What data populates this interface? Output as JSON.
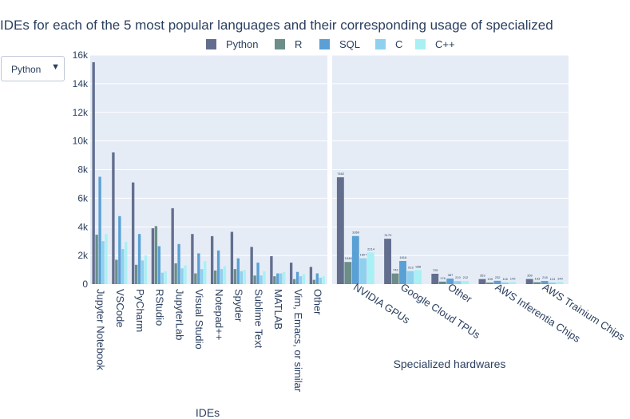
{
  "title": "IDEs for each of the 5 most popular languages and their corresponding usage of specialized",
  "dropdown": {
    "selected": "Python"
  },
  "icons": {
    "dropdown_arrow": "▼"
  },
  "colors": {
    "plot_bg": "#e5ecf6",
    "grid": "#ffffff",
    "text": "#2a3f5f",
    "series": [
      "#636e8f",
      "#6b8e88",
      "#5aa0d4",
      "#8fd0ee",
      "#a9f0f4"
    ]
  },
  "chart_data": [
    {
      "type": "bar",
      "xlabel": "IDEs",
      "ylim": [
        0,
        16000
      ],
      "yticks": [
        0,
        2000,
        4000,
        6000,
        8000,
        10000,
        12000,
        14000,
        16000
      ],
      "ytick_labels": [
        "0",
        "2k",
        "4k",
        "6k",
        "8k",
        "10k",
        "12k",
        "14k",
        "16k"
      ],
      "legend": {
        "placement": "top",
        "entries": [
          "Python",
          "R",
          "SQL",
          "C",
          "C++"
        ]
      },
      "categories": [
        "Jupyter Notebook",
        "VSCode",
        "PyCharm",
        "RStudio",
        "JupyterLab",
        "Visual Studio",
        "Notepad++",
        "Spyder",
        "Sublime Text",
        "MATLAB",
        "Vim, Emacs, or similar",
        "Other"
      ],
      "series": [
        {
          "name": "Python",
          "values": [
            15500,
            9200,
            7100,
            3900,
            5300,
            3500,
            3350,
            3650,
            2600,
            1950,
            1500,
            1200
          ]
        },
        {
          "name": "R",
          "values": [
            3450,
            1700,
            1350,
            4050,
            1450,
            750,
            950,
            1050,
            600,
            550,
            350,
            300
          ]
        },
        {
          "name": "SQL",
          "values": [
            7500,
            4750,
            3500,
            2650,
            2800,
            2150,
            2350,
            1800,
            1500,
            750,
            850,
            750
          ]
        },
        {
          "name": "C",
          "values": [
            3000,
            2450,
            1650,
            800,
            1100,
            1050,
            1050,
            900,
            600,
            750,
            550,
            450
          ]
        },
        {
          "name": "C++",
          "values": [
            3500,
            2950,
            2000,
            900,
            1300,
            1600,
            1250,
            1000,
            900,
            850,
            700,
            550
          ]
        }
      ]
    },
    {
      "type": "bar",
      "xlabel": "Specialized hardwares",
      "ylim": [
        0,
        16000
      ],
      "categories": [
        "NVIDIA GPUs",
        "Google Cloud TPUs",
        "Other",
        "AWS Inferentia Chips",
        "AWS Trainium Chips"
      ],
      "series": [
        {
          "name": "Python",
          "values": [
            7462,
            3170,
            725,
            353,
            359
          ],
          "labels": [
            "7462",
            "3170",
            "725",
            "353",
            "359"
          ]
        },
        {
          "name": "R",
          "values": [
            1548,
            743,
            176,
            109,
            133
          ],
          "labels": [
            "1548",
            "743",
            "176",
            "109",
            "133"
          ]
        },
        {
          "name": "SQL",
          "values": [
            3360,
            1616,
            387,
            232,
            218
          ],
          "labels": [
            "3360",
            "1616",
            "387",
            "232",
            "218"
          ]
        },
        {
          "name": "C",
          "values": [
            1807,
            913,
            210,
            116,
            113
          ],
          "labels": [
            "1807",
            "913",
            "210",
            "116",
            "113"
          ]
        },
        {
          "name": "C++",
          "values": [
            2214,
            988,
            212,
            149,
            149
          ],
          "labels": [
            "2214",
            "988",
            "212",
            "149",
            "149"
          ]
        }
      ]
    }
  ]
}
